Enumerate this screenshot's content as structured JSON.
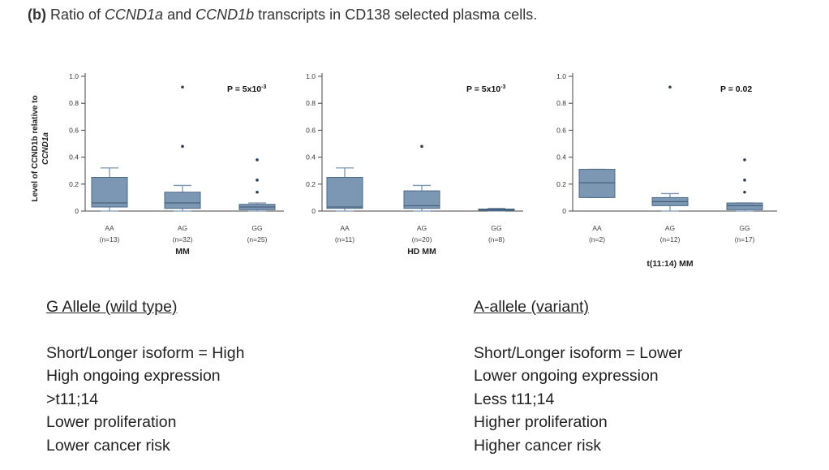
{
  "title": {
    "label": "(b)",
    "parts": [
      "Ratio of ",
      "CCND1a",
      " and ",
      "CCND1b",
      " transcripts in CD138 selected plasma cells."
    ]
  },
  "y_axis_label": {
    "line1": "Level of CCND1b relative to",
    "line2": "CCND1a"
  },
  "chart_data": [
    {
      "type": "box",
      "xlabel": "MM",
      "p_value": "P = 5x10",
      "p_exp": "-3",
      "yticks": [
        "0",
        "0.2",
        "0.4",
        "0.6",
        "0.8",
        "1.0"
      ],
      "ylim": [
        0,
        1.0
      ],
      "groups": [
        {
          "name": "AA",
          "n": "(n=13)",
          "min": 0.0,
          "q1": 0.03,
          "median": 0.06,
          "q3": 0.25,
          "max": 0.32,
          "outliers": []
        },
        {
          "name": "AG",
          "n": "(n=32)",
          "min": 0.0,
          "q1": 0.02,
          "median": 0.06,
          "q3": 0.14,
          "max": 0.19,
          "outliers": [
            0.48,
            0.92
          ]
        },
        {
          "name": "GG",
          "n": "(n=25)",
          "min": 0.0,
          "q1": 0.01,
          "median": 0.03,
          "q3": 0.05,
          "max": 0.06,
          "outliers": [
            0.14,
            0.23,
            0.38
          ]
        }
      ]
    },
    {
      "type": "box",
      "xlabel": "HD MM",
      "p_value": "P = 5x10",
      "p_exp": "-3",
      "yticks": [
        "0",
        "0.2",
        "0.4",
        "0.6",
        "0.8",
        "1.0"
      ],
      "ylim": [
        0,
        1.0
      ],
      "groups": [
        {
          "name": "AA",
          "n": "(n=11)",
          "min": 0.0,
          "q1": 0.02,
          "median": 0.03,
          "q3": 0.25,
          "max": 0.32,
          "outliers": []
        },
        {
          "name": "AG",
          "n": "(n=20)",
          "min": 0.0,
          "q1": 0.02,
          "median": 0.04,
          "q3": 0.15,
          "max": 0.19,
          "outliers": [
            0.48
          ]
        },
        {
          "name": "GG",
          "n": "(n=8)",
          "min": 0.0,
          "q1": 0.005,
          "median": 0.01,
          "q3": 0.015,
          "max": 0.02,
          "outliers": []
        }
      ]
    },
    {
      "type": "box",
      "xlabel": "t(11:14) MM",
      "p_value": "P = 0.02",
      "p_exp": "",
      "yticks": [
        "0",
        "0.2",
        "0.4",
        "0.6",
        "0.8",
        "1.0"
      ],
      "ylim": [
        0,
        1.0
      ],
      "groups": [
        {
          "name": "AA",
          "n": "(n=2)",
          "min": 0.1,
          "q1": 0.1,
          "median": 0.21,
          "q3": 0.31,
          "max": 0.31,
          "outliers": []
        },
        {
          "name": "AG",
          "n": "(n=12)",
          "min": 0.0,
          "q1": 0.04,
          "median": 0.07,
          "q3": 0.1,
          "max": 0.13,
          "outliers": [
            0.92
          ]
        },
        {
          "name": "GG",
          "n": "(n=17)",
          "min": 0.0,
          "q1": 0.01,
          "median": 0.04,
          "q3": 0.06,
          "max": 0.06,
          "outliers": [
            0.14,
            0.23,
            0.38
          ]
        }
      ]
    }
  ],
  "left_column": {
    "heading": "G Allele (wild type) ",
    "lines": [
      "Short/Longer  isoform = High",
      "High ongoing expression",
      ">t11;14",
      "Lower proliferation",
      "Lower cancer risk"
    ]
  },
  "right_column": {
    "heading": "A-allele (variant)",
    "lines": [
      "Short/Longer isoform = Lower",
      "Lower ongoing expression",
      "Less t11;14",
      "Higher proliferation",
      "Higher cancer risk"
    ]
  }
}
